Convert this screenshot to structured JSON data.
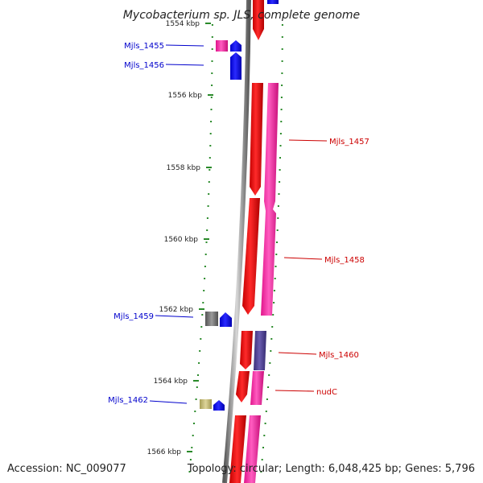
{
  "title": "Mycobacterium sp. JLS, complete genome",
  "footer": {
    "accession": "Accession: NC_009077",
    "summary": "Topology: circular; Length: 6,048,425 bp; Genes: 5,796"
  },
  "ticks": [
    {
      "label": "1554 kbp"
    },
    {
      "label": "1556 kbp"
    },
    {
      "label": "1558 kbp"
    },
    {
      "label": "1560 kbp"
    },
    {
      "label": "1562 kbp"
    },
    {
      "label": "1564 kbp"
    },
    {
      "label": "1566 kbp"
    }
  ],
  "gene_labels": [
    {
      "text": "Mjls_1455",
      "strand": "reverse"
    },
    {
      "text": "Mjls_1456",
      "strand": "reverse"
    },
    {
      "text": "Mjls_1457",
      "strand": "forward"
    },
    {
      "text": "Mjls_1458",
      "strand": "forward"
    },
    {
      "text": "Mjls_1459",
      "strand": "reverse"
    },
    {
      "text": "Mjls_1460",
      "strand": "forward"
    },
    {
      "text": "nudC",
      "strand": "forward"
    },
    {
      "text": "Mjls_1462",
      "strand": "reverse"
    }
  ],
  "colors": {
    "forward_label": "#cc0000",
    "reverse_label": "#0000cc",
    "cds_red": "#ff0000",
    "cds_pink": "#ff2aa0",
    "cds_blue": "#0000ff",
    "cds_purple": "#4a3c8c",
    "cds_gray": "#777777",
    "cds_khaki": "#c8bf78",
    "backbone": "#8a8a8a",
    "gc_dots": "#2a8a2a"
  }
}
